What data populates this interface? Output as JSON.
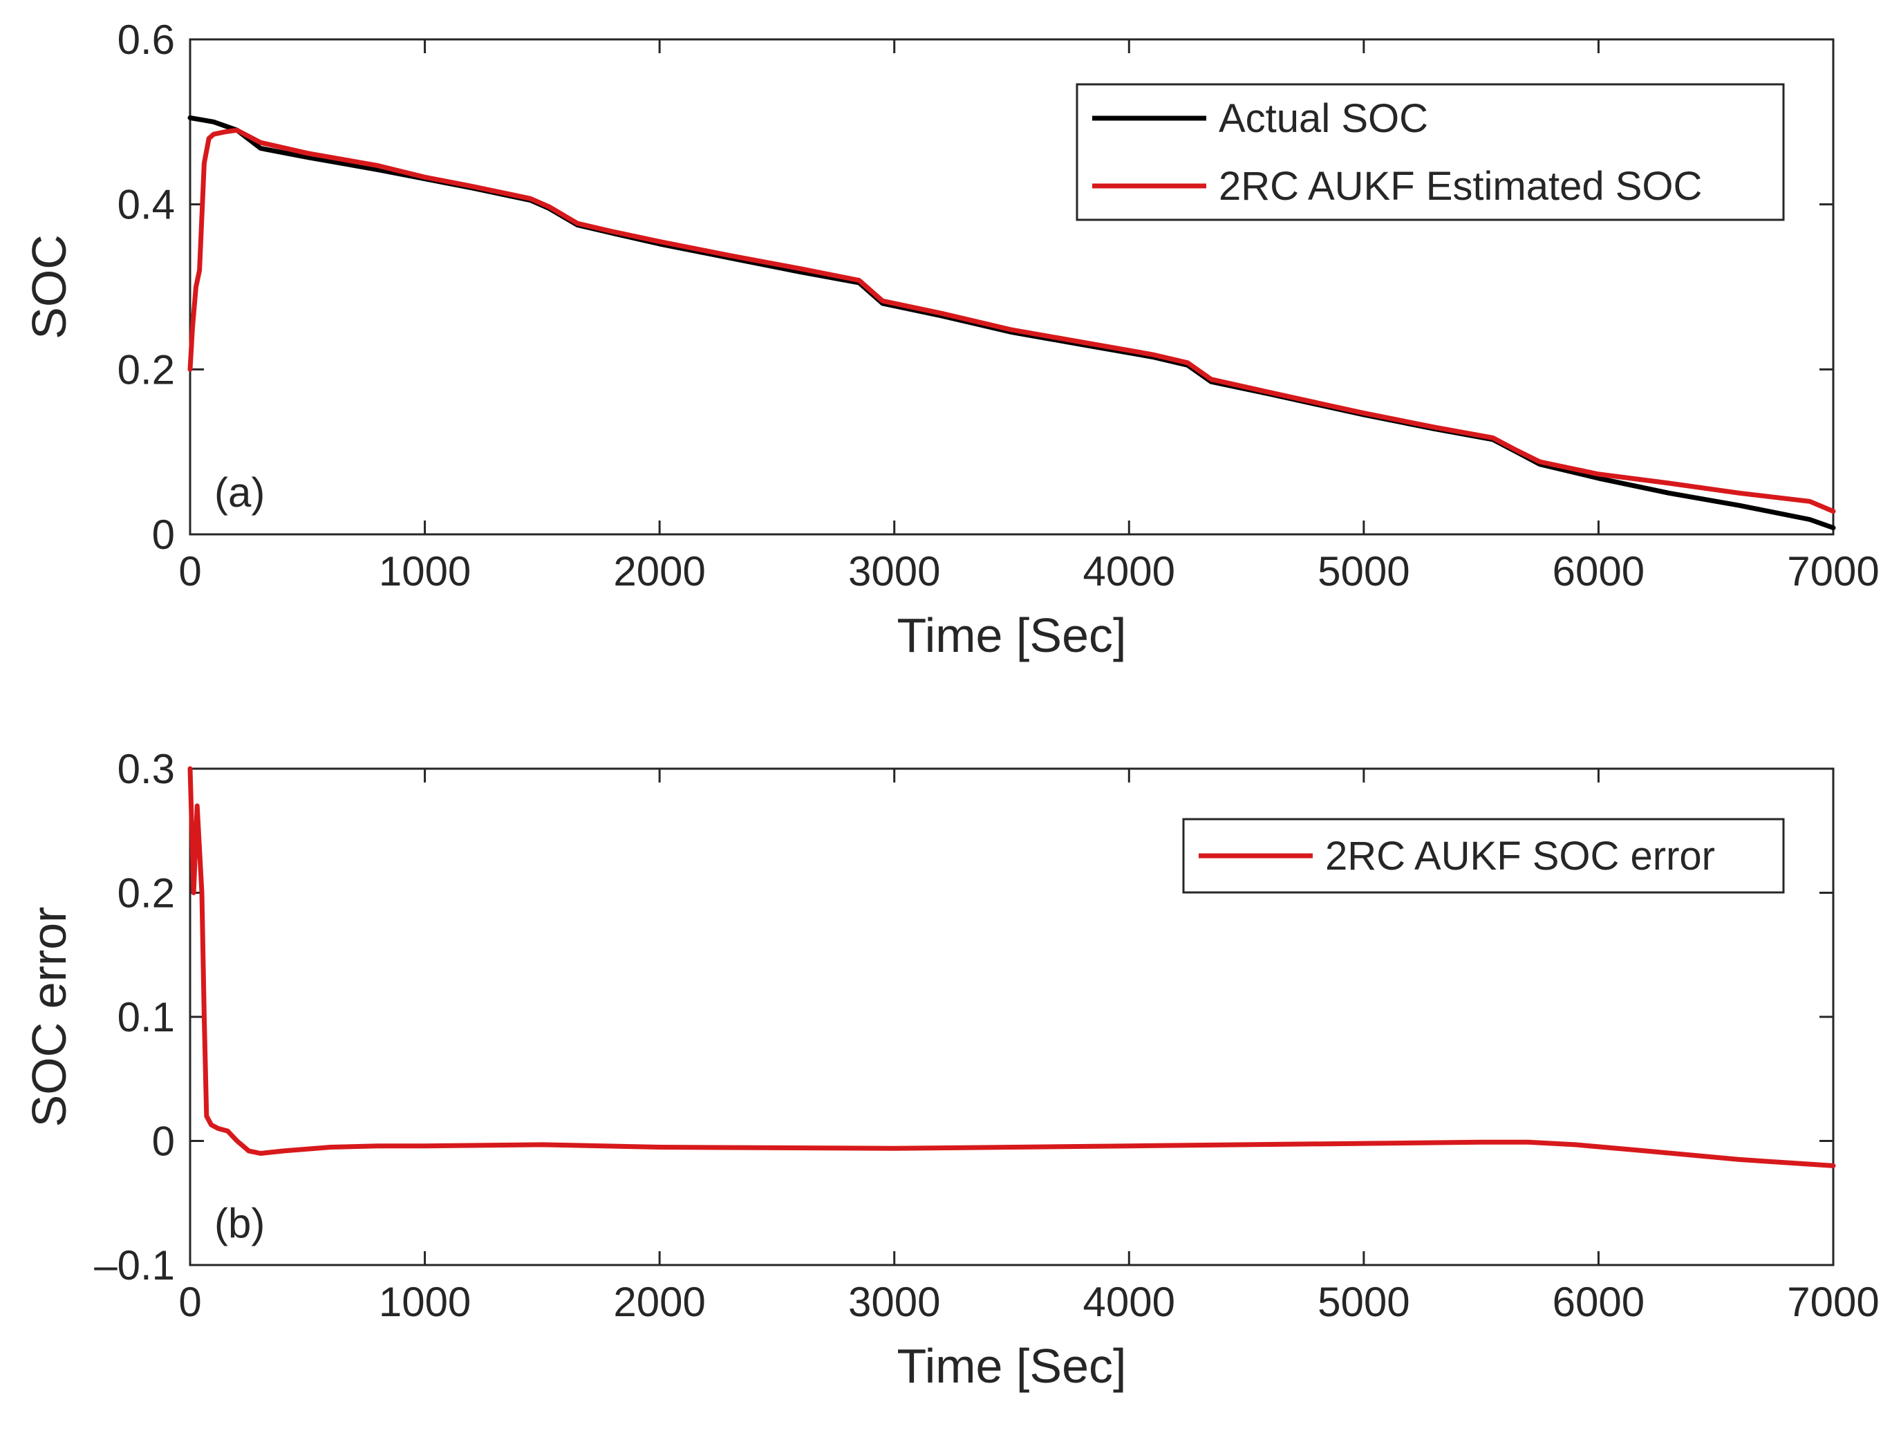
{
  "chart_data": [
    {
      "id": "a",
      "type": "line",
      "panel_label": "(a)",
      "xlabel": "Time [Sec]",
      "ylabel": "SOC",
      "xlim": [
        0,
        7000
      ],
      "ylim": [
        0,
        0.6
      ],
      "xticks": [
        0,
        1000,
        2000,
        3000,
        4000,
        5000,
        6000,
        7000
      ],
      "xtick_labels": [
        "0",
        "1000",
        "2000",
        "3000",
        "4000",
        "5000",
        "6000",
        "7000"
      ],
      "yticks": [
        0,
        0.2,
        0.4,
        0.6
      ],
      "ytick_labels": [
        "0",
        "0.2",
        "0.4",
        "0.6"
      ],
      "legend_position": "top-right",
      "series": [
        {
          "name": "Actual SOC",
          "color": "#000000",
          "x": [
            0,
            100,
            200,
            300,
            500,
            800,
            1000,
            1200,
            1450,
            1530,
            1650,
            1800,
            2000,
            2300,
            2600,
            2850,
            2950,
            3200,
            3500,
            3800,
            4100,
            4250,
            4350,
            4600,
            5000,
            5300,
            5550,
            5650,
            5750,
            6000,
            6300,
            6600,
            6900,
            7000
          ],
          "y": [
            0.505,
            0.5,
            0.49,
            0.468,
            0.457,
            0.442,
            0.431,
            0.42,
            0.405,
            0.395,
            0.375,
            0.365,
            0.352,
            0.335,
            0.318,
            0.305,
            0.28,
            0.265,
            0.245,
            0.23,
            0.215,
            0.205,
            0.185,
            0.17,
            0.145,
            0.128,
            0.115,
            0.1,
            0.085,
            0.068,
            0.05,
            0.035,
            0.018,
            0.008
          ]
        },
        {
          "name": "2RC AUKF Estimated SOC",
          "color": "#d7191c",
          "x": [
            0,
            10,
            25,
            40,
            60,
            80,
            100,
            150,
            200,
            300,
            500,
            800,
            1000,
            1200,
            1450,
            1530,
            1650,
            1800,
            2000,
            2300,
            2600,
            2850,
            2950,
            3200,
            3500,
            3800,
            4100,
            4250,
            4350,
            4600,
            5000,
            5300,
            5550,
            5650,
            5750,
            6000,
            6300,
            6600,
            6900,
            7000
          ],
          "y": [
            0.2,
            0.25,
            0.3,
            0.32,
            0.45,
            0.48,
            0.485,
            0.488,
            0.49,
            0.475,
            0.462,
            0.447,
            0.433,
            0.422,
            0.407,
            0.397,
            0.377,
            0.367,
            0.355,
            0.338,
            0.322,
            0.308,
            0.283,
            0.268,
            0.248,
            0.233,
            0.218,
            0.208,
            0.188,
            0.172,
            0.147,
            0.13,
            0.117,
            0.102,
            0.088,
            0.073,
            0.062,
            0.05,
            0.04,
            0.028
          ]
        }
      ]
    },
    {
      "id": "b",
      "type": "line",
      "panel_label": "(b)",
      "xlabel": "Time [Sec]",
      "ylabel": "SOC error",
      "xlim": [
        0,
        7000
      ],
      "ylim": [
        -0.1,
        0.3
      ],
      "xticks": [
        0,
        1000,
        2000,
        3000,
        4000,
        5000,
        6000,
        7000
      ],
      "xtick_labels": [
        "0",
        "1000",
        "2000",
        "3000",
        "4000",
        "5000",
        "6000",
        "7000"
      ],
      "yticks": [
        -0.1,
        0,
        0.1,
        0.2,
        0.3
      ],
      "ytick_labels": [
        "–0.1",
        "0",
        "0.1",
        "0.2",
        "0.3"
      ],
      "legend_position": "top-right",
      "series": [
        {
          "name": "2RC AUKF SOC error",
          "color": "#d7191c",
          "x": [
            0,
            15,
            30,
            50,
            60,
            70,
            90,
            120,
            160,
            200,
            250,
            300,
            400,
            600,
            800,
            1000,
            1500,
            2000,
            3000,
            4000,
            5000,
            5500,
            5700,
            5900,
            6200,
            6600,
            7000
          ],
          "y": [
            0.3,
            0.2,
            0.27,
            0.2,
            0.1,
            0.02,
            0.013,
            0.01,
            0.008,
            0.0,
            -0.008,
            -0.01,
            -0.008,
            -0.005,
            -0.004,
            -0.004,
            -0.003,
            -0.005,
            -0.006,
            -0.004,
            -0.002,
            -0.001,
            -0.001,
            -0.003,
            -0.008,
            -0.015,
            -0.02
          ]
        }
      ]
    }
  ]
}
